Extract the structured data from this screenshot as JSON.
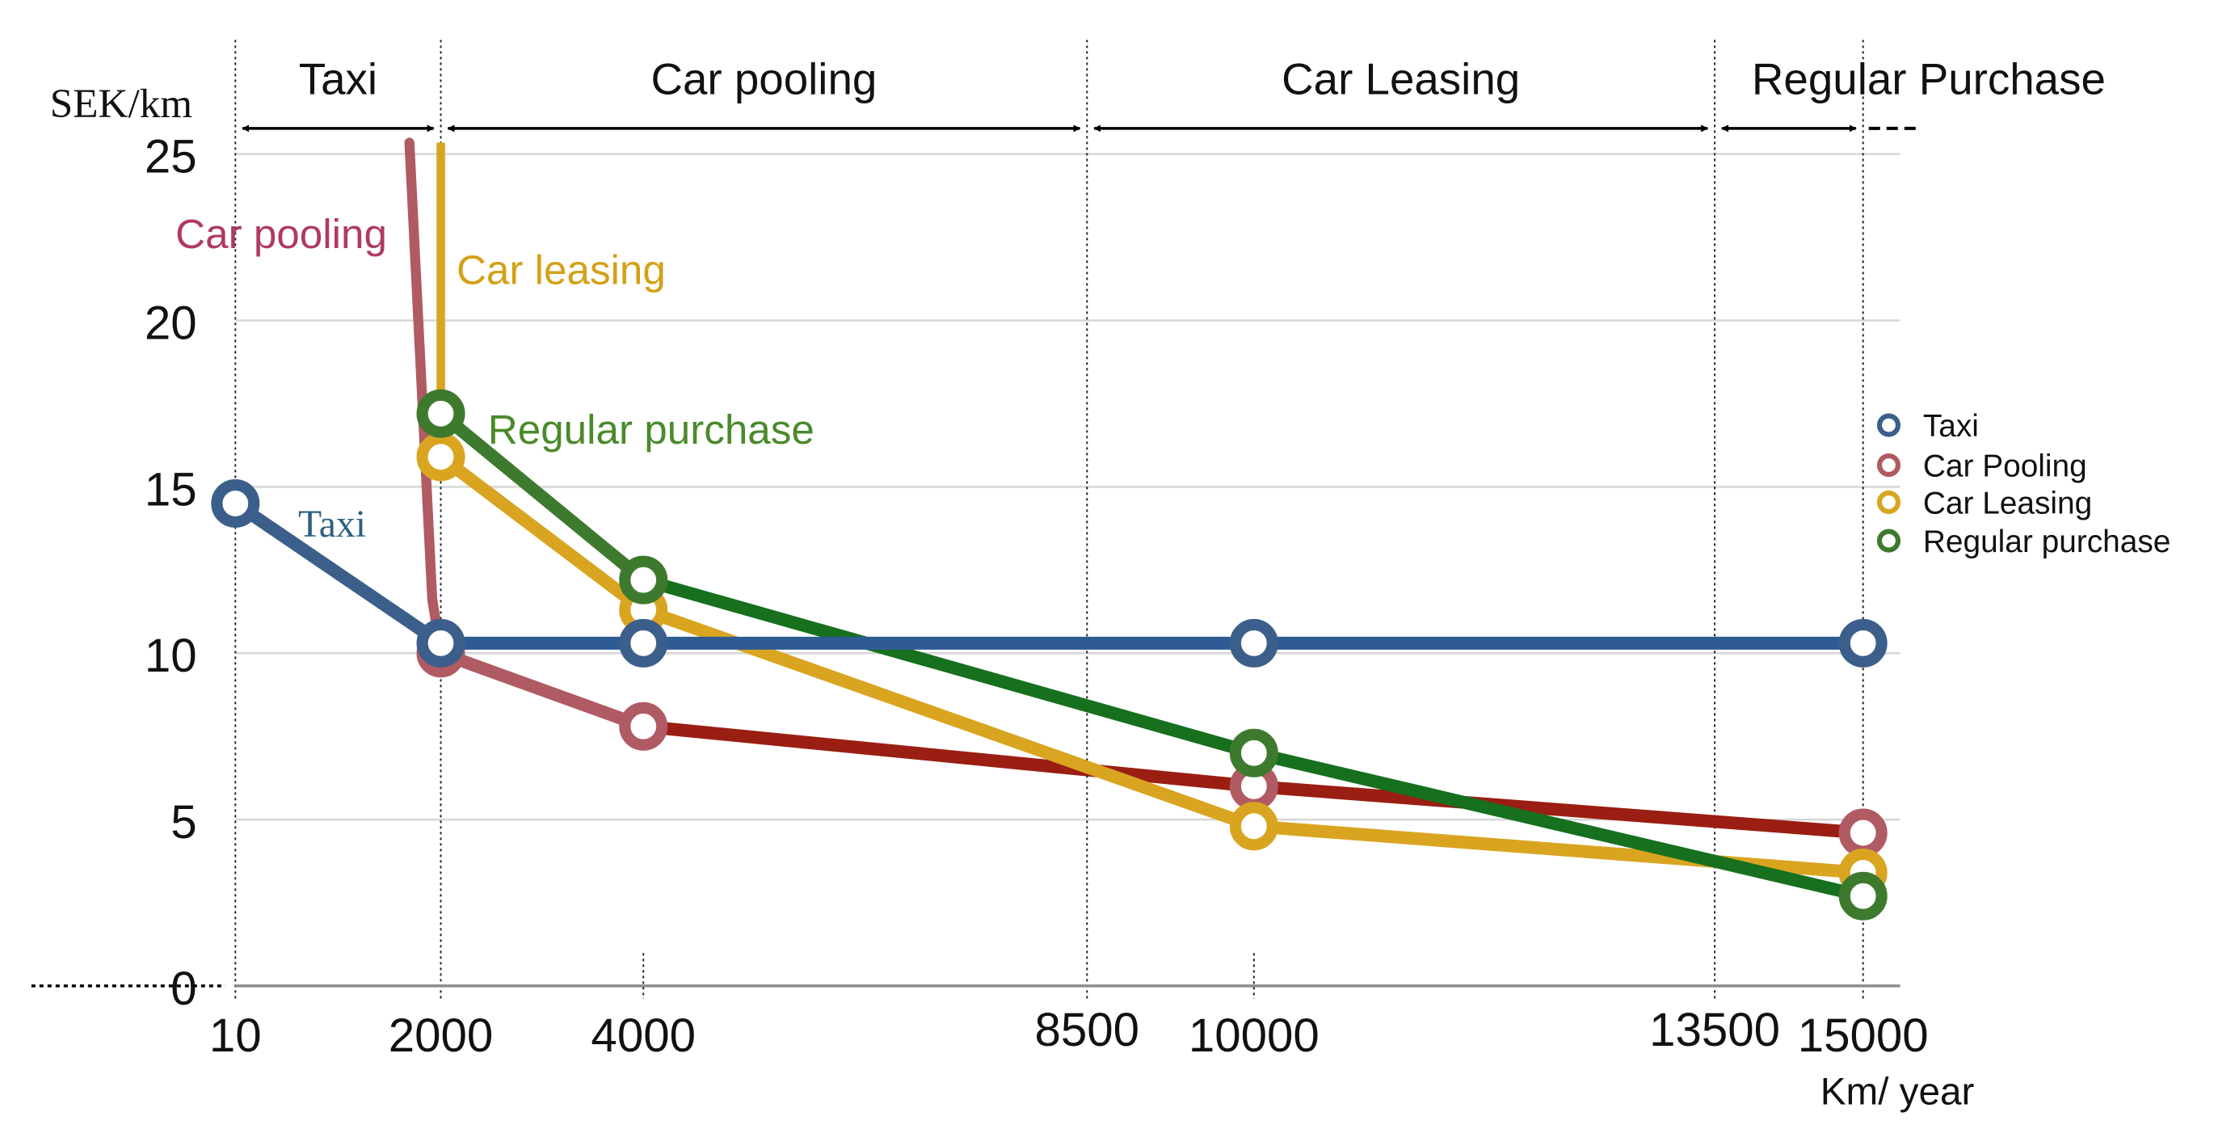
{
  "chart_data": {
    "type": "line",
    "xlabel": "Km/ year",
    "ylabel": "SEK/km",
    "x_ticks": [
      "10",
      "2000",
      "4000",
      "8500",
      "10000",
      "13500",
      "15000"
    ],
    "y_ticks": [
      "0",
      "5",
      "10",
      "15",
      "20",
      "25"
    ],
    "ylim": [
      0,
      25
    ],
    "grid": "horizontal",
    "legend_position": "right",
    "regions": [
      {
        "label": "Taxi",
        "from": "10",
        "to": "2000"
      },
      {
        "label": "Car pooling",
        "from": "2000",
        "to": "8500"
      },
      {
        "label": "Car Leasing",
        "from": "8500",
        "to": "13500"
      },
      {
        "label": "Regular Purchase",
        "from": "13500",
        "to": "15000"
      }
    ],
    "series": [
      {
        "name": "Taxi",
        "color": "#3b5f8a",
        "label": "Taxi",
        "points": [
          {
            "x": "10",
            "y": 14.5
          },
          {
            "x": "2000",
            "y": 10.3
          },
          {
            "x": "4000",
            "y": 10.3
          },
          {
            "x": "10000",
            "y": 10.3
          },
          {
            "x": "15000",
            "y": 10.3
          }
        ]
      },
      {
        "name": "Car Pooling",
        "color": "#b05a63",
        "label": "Car pooling",
        "points": [
          {
            "x": "2000",
            "y": 10.0
          },
          {
            "x": "4000",
            "y": 7.8
          },
          {
            "x": "10000",
            "y": 6.0
          },
          {
            "x": "15000",
            "y": 4.6
          }
        ]
      },
      {
        "name": "Car Leasing",
        "color": "#d9a521",
        "label": "Car leasing",
        "points": [
          {
            "x": "2000",
            "y": 15.9
          },
          {
            "x": "4000",
            "y": 11.3
          },
          {
            "x": "10000",
            "y": 4.8
          },
          {
            "x": "15000",
            "y": 3.4
          }
        ]
      },
      {
        "name": "Regular purchase",
        "color": "#3e7a2e",
        "label": "Regular purchase",
        "points": [
          {
            "x": "2000",
            "y": 17.2
          },
          {
            "x": "4000",
            "y": 12.2
          },
          {
            "x": "10000",
            "y": 7.0
          },
          {
            "x": "15000",
            "y": 2.7
          }
        ]
      }
    ]
  },
  "colors": {
    "taxi": "#3b5f8a",
    "taxi_segment": "#2f5b94",
    "pooling": "#b05a63",
    "pooling_segment": "#9a1e12",
    "leasing": "#d9a521",
    "purchase": "#3e7a2e",
    "purchase_segment": "#16701e",
    "pooling_label": "#b03a5e",
    "leasing_label": "#d4a017",
    "purchase_label": "#4a8a2a",
    "taxi_label": "#2e5f80"
  }
}
